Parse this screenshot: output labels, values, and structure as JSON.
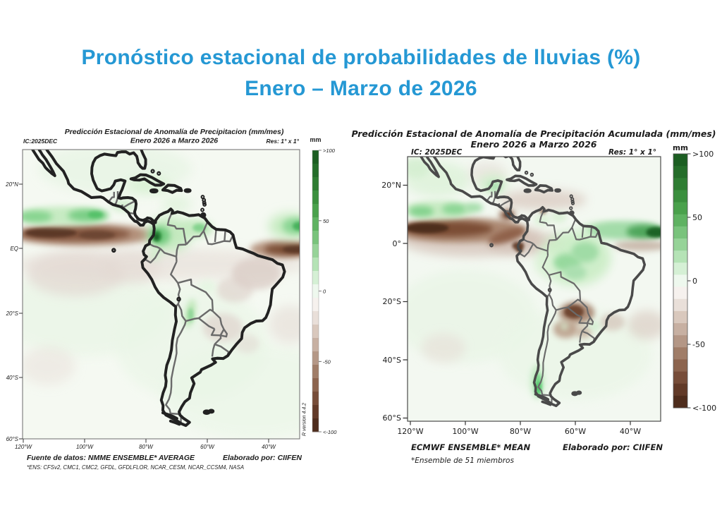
{
  "header": {
    "line1": "Pronóstico estacional de probabilidades de lluvias (%)",
    "line2": "Enero – Marzo de 2026",
    "accent_color": "#2598d4"
  },
  "left_map": {
    "title1": "Predicción Estacional de Anomalía de Precipitacion (mm/mes)",
    "title2": "Enero 2026 a Marzo 2026",
    "ic": "IC:2025DEC",
    "res": "Res: 1° x 1°",
    "unit": "mm",
    "cb_ticks": [
      ">100",
      "50",
      "0",
      "-50",
      "<-100"
    ],
    "lat_ticks": [
      "20°N",
      "EQ",
      "20°S",
      "40°S",
      "60°S"
    ],
    "lon_ticks": [
      "120°W",
      "100°W",
      "80°W",
      "60°W",
      "40°W"
    ],
    "source": "Fuente de datos: NMME ENSEMBLE* AVERAGE",
    "credit": "Elaborado por: CIIFEN",
    "note": "*ENS: CFSv2, CMC1, CMC2, GFDL, GFDLFLOR, NCAR_CESM, NCAR_CCSM4, NASA",
    "r_version": "R version 4.4.2"
  },
  "right_map": {
    "title1": "Predicción Estacional de Anomalía de Precipitación Acumulada (mm/mes)",
    "title2": "Enero 2026 a Marzo 2026",
    "ic": "IC: 2025DEC",
    "res": "Res: 1° x 1°",
    "unit": "mm",
    "cb_ticks": [
      ">100",
      "50",
      "0",
      "-50",
      "<-100"
    ],
    "lat_ticks": [
      "20°N",
      "0°",
      "20°S",
      "40°S",
      "60°S"
    ],
    "lon_ticks": [
      "120°W",
      "100°W",
      "80°W",
      "60°W",
      "40°W"
    ],
    "source": "ECMWF ENSEMBLE* MEAN",
    "credit": "Elaborado por: CIIFEN",
    "note": "*Ensemble de 51 miembros"
  },
  "scale": {
    "unit": "mm",
    "range_min": -100,
    "range_max": 100
  },
  "colorbar_colors": [
    "#1c5e22",
    "#256d2a",
    "#2f7d33",
    "#3b8f3e",
    "#4aa14c",
    "#5fb262",
    "#79c37c",
    "#96d398",
    "#b5e3b6",
    "#d5f0d5",
    "#eef8ee",
    "#f6f1ee",
    "#e9dfd9",
    "#d9c8bd",
    "#c7b0a2",
    "#b49786",
    "#a07d68",
    "#8c644e",
    "#774d39",
    "#623a28",
    "#4e2c1c"
  ]
}
